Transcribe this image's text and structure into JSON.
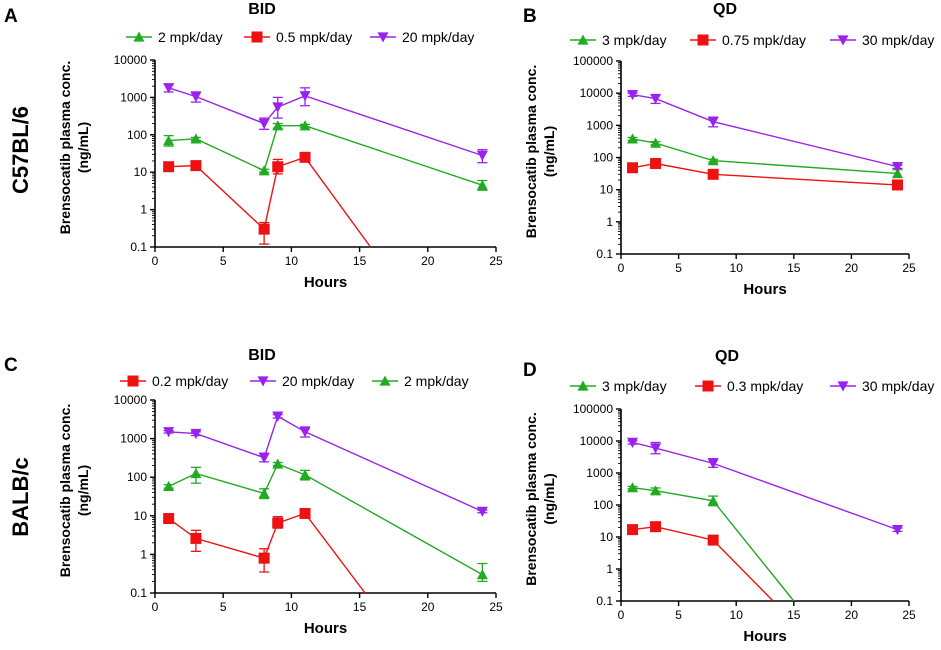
{
  "row_labels": {
    "top": "C57BL/6",
    "bottom": "BALB/c"
  },
  "chart_data": [
    {
      "type": "line",
      "panel": "A",
      "title": "BID",
      "xlabel": "Hours",
      "ylabel": [
        "Brensocatib plasma conc.",
        "(ng/mL)"
      ],
      "yscale": "log",
      "xlim": [
        0,
        25
      ],
      "ylim": [
        0.1,
        10000
      ],
      "x_ticks": [
        "0",
        "5",
        "10",
        "15",
        "20",
        "25"
      ],
      "y_ticks": [
        "0.1",
        "1",
        "10",
        "100",
        "1000",
        "10000"
      ],
      "series": [
        {
          "name": "2 mpk/day",
          "color": "#22aa22",
          "marker": "triangle-up",
          "points": [
            [
              1,
              70,
              50,
              95
            ],
            [
              3,
              78,
              70,
              85
            ],
            [
              8,
              11,
              10,
              12
            ],
            [
              9,
              175,
              150,
              200
            ],
            [
              11,
              175,
              160,
              190
            ],
            [
              24,
              4.5,
              3.3,
              6
            ]
          ]
        },
        {
          "name": "0.5 mpk/day",
          "color": "#ee1111",
          "marker": "square",
          "points": [
            [
              1,
              14,
              12,
              16
            ],
            [
              3,
              15,
              13,
              17
            ],
            [
              8,
              0.3,
              0.12,
              0.45
            ],
            [
              9,
              14,
              9,
              22
            ],
            [
              11,
              25,
              22,
              28
            ],
            [
              15.8,
              0.1,
              0.1,
              0.1
            ]
          ]
        },
        {
          "name": "20 mpk/day",
          "color": "#9922ee",
          "marker": "triangle-down",
          "points": [
            [
              1,
              1800,
              1400,
              2200
            ],
            [
              3,
              1050,
              750,
              1400
            ],
            [
              8,
              200,
              140,
              280
            ],
            [
              9,
              550,
              280,
              1000
            ],
            [
              11,
              1100,
              600,
              1800
            ],
            [
              24,
              28,
              18,
              40
            ]
          ]
        }
      ]
    },
    {
      "type": "line",
      "panel": "B",
      "title": "QD",
      "xlabel": "Hours",
      "ylabel": [
        "Brensocatib plasma conc.",
        "(ng/mL)"
      ],
      "yscale": "log",
      "xlim": [
        0,
        25
      ],
      "ylim": [
        0.1,
        100000
      ],
      "x_ticks": [
        "0",
        "5",
        "10",
        "15",
        "20",
        "25"
      ],
      "y_ticks": [
        "0.1",
        "1",
        "10",
        "100",
        "1000",
        "10000",
        "100000"
      ],
      "series": [
        {
          "name": "3 mpk/day",
          "color": "#22aa22",
          "marker": "triangle-up",
          "points": [
            [
              1,
              380,
              340,
              420
            ],
            [
              3,
              280,
              250,
              310
            ],
            [
              8,
              80,
              72,
              88
            ],
            [
              24,
              32,
              24,
              42
            ]
          ]
        },
        {
          "name": "0.75 mpk/day",
          "color": "#ee1111",
          "marker": "square",
          "points": [
            [
              1,
              48,
              38,
              60
            ],
            [
              3,
              65,
              58,
              72
            ],
            [
              8,
              30,
              27,
              33
            ],
            [
              24,
              14,
              12,
              16
            ]
          ]
        },
        {
          "name": "30 mpk/day",
          "color": "#9922ee",
          "marker": "triangle-down",
          "points": [
            [
              1,
              9000,
              8000,
              10000
            ],
            [
              3,
              6800,
              4800,
              9000
            ],
            [
              8,
              1300,
              900,
              1800
            ],
            [
              24,
              52,
              46,
              58
            ]
          ]
        }
      ]
    },
    {
      "type": "line",
      "panel": "C",
      "title": "BID",
      "xlabel": "Hours",
      "ylabel": [
        "Brensocatib plasma conc.",
        "(ng/mL)"
      ],
      "yscale": "log",
      "xlim": [
        0,
        25
      ],
      "ylim": [
        0.1,
        10000
      ],
      "x_ticks": [
        "0",
        "5",
        "10",
        "15",
        "20",
        "25"
      ],
      "y_ticks": [
        "0.1",
        "1",
        "10",
        "100",
        "1000",
        "10000"
      ],
      "series": [
        {
          "name": "0.2 mpk/day",
          "color": "#ee1111",
          "marker": "square",
          "points": [
            [
              1,
              8.5,
              7.5,
              9.5
            ],
            [
              3,
              2.6,
              1.2,
              4.2
            ],
            [
              8,
              0.8,
              0.35,
              1.4
            ],
            [
              9,
              6.5,
              4.8,
              9.5
            ],
            [
              11,
              11.5,
              9,
              14
            ],
            [
              15.4,
              0.1,
              0.1,
              0.1
            ]
          ]
        },
        {
          "name": "20 mpk/day",
          "color": "#9922ee",
          "marker": "triangle-down",
          "points": [
            [
              1,
              1500,
              1400,
              1600
            ],
            [
              3,
              1350,
              1200,
              1500
            ],
            [
              8,
              320,
              250,
              420
            ],
            [
              9,
              3800,
              3400,
              4200
            ],
            [
              11,
              1500,
              1100,
              2000
            ],
            [
              24,
              13,
              12,
              14
            ]
          ]
        },
        {
          "name": "2 mpk/day",
          "color": "#22aa22",
          "marker": "triangle-up",
          "points": [
            [
              1,
              58,
              52,
              64
            ],
            [
              3,
              125,
              70,
              180
            ],
            [
              8,
              38,
              28,
              50
            ],
            [
              9,
              220,
              200,
              240
            ],
            [
              11,
              115,
              85,
              150
            ],
            [
              24,
              0.3,
              0.2,
              0.58
            ]
          ]
        }
      ]
    },
    {
      "type": "line",
      "panel": "D",
      "title": "QD",
      "xlabel": "Hours",
      "ylabel": [
        "Brensocatib plasma conc.",
        "(ng/mL)"
      ],
      "yscale": "log",
      "xlim": [
        0,
        25
      ],
      "ylim": [
        0.1,
        100000
      ],
      "x_ticks": [
        "0",
        "5",
        "10",
        "15",
        "20",
        "25"
      ],
      "y_ticks": [
        "0.1",
        "1",
        "10",
        "100",
        "1000",
        "10000",
        "100000"
      ],
      "series": [
        {
          "name": "3 mpk/day",
          "color": "#22aa22",
          "marker": "triangle-up",
          "points": [
            [
              1,
              350,
              320,
              380
            ],
            [
              3,
              280,
              230,
              340
            ],
            [
              8,
              135,
              95,
              190
            ],
            [
              15,
              0.1,
              0.1,
              0.1
            ]
          ]
        },
        {
          "name": "0.3 mpk/day",
          "color": "#ee1111",
          "marker": "square",
          "points": [
            [
              1,
              17,
              15,
              19
            ],
            [
              3,
              21,
              19,
              23
            ],
            [
              8,
              8,
              6,
              11
            ],
            [
              13.2,
              0.1,
              0.1,
              0.1
            ]
          ]
        },
        {
          "name": "30 mpk/day",
          "color": "#9922ee",
          "marker": "triangle-down",
          "points": [
            [
              1,
              9000,
              8000,
              10000
            ],
            [
              3,
              6000,
              4000,
              9000
            ],
            [
              8,
              2000,
              1500,
              2800
            ],
            [
              24,
              17,
              15,
              19
            ]
          ]
        }
      ]
    }
  ]
}
